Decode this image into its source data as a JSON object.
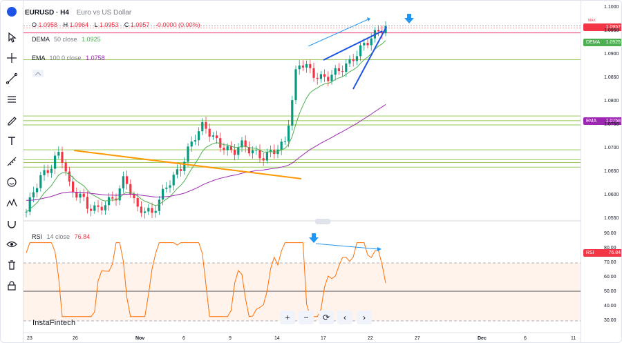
{
  "symbol": {
    "name": "EURUSD · H4",
    "description": "Euro vs US Dollar"
  },
  "ohlc": {
    "o_label": "O",
    "o": "1.0958",
    "h_label": "H",
    "h": "1.0964",
    "l_label": "L",
    "l": "1.0953",
    "c_label": "C",
    "c": "1.0957",
    "change": "-0.0000 (0.00%)"
  },
  "dema": {
    "label": "DEMA",
    "params": "50 close",
    "value": "1.0925"
  },
  "ema": {
    "label": "EMA",
    "params": "100 0 close",
    "value": "1.0758"
  },
  "rsi": {
    "label": "RSI",
    "params": "14 close",
    "value": "76.84"
  },
  "price_axis": [
    "1.1000",
    "1.0950",
    "1.0900",
    "1.0850",
    "1.0800",
    "1.0750",
    "1.0700",
    "1.0650",
    "1.0600",
    "1.0550"
  ],
  "price_tags": {
    "max": "MAX",
    "last": "1.0957",
    "dema_name": "DEMA",
    "dema": "1.0925",
    "ema_name": "EMA",
    "ema": "1.0758"
  },
  "rsi_axis": [
    "90.00",
    "80.00",
    "70.00",
    "60.00",
    "50.00",
    "40.00",
    "30.00"
  ],
  "rsi_tag": {
    "name": "RSI",
    "value": "76.84"
  },
  "time_axis": [
    "23",
    "26",
    "Nov",
    "6",
    "9",
    "14",
    "17",
    "22",
    "27",
    "Dec",
    "6",
    "11"
  ],
  "watermark": "InstaFintech",
  "colors": {
    "bull": "#089981",
    "bear": "#f23645",
    "dema": "#4caf50",
    "ema": "#9c27b0",
    "rsi": "#ff6d00",
    "trend_blue": "#1e53e5",
    "trend_orange": "#ff9800",
    "hline": "#8bc34a",
    "last_price": "#f23645"
  },
  "tools": [
    "cursor-icon",
    "crosshair-icon",
    "trendline-icon",
    "fib-icon",
    "brush-icon",
    "text-icon",
    "measure-icon",
    "emoji-icon",
    "pattern-icon",
    "magnet-icon",
    "eye-icon",
    "trash-icon",
    "lock-icon"
  ],
  "nav_icons": [
    "zoom-in-icon",
    "zoom-out-icon",
    "reset-icon",
    "scroll-left-icon",
    "scroll-right-icon"
  ]
}
